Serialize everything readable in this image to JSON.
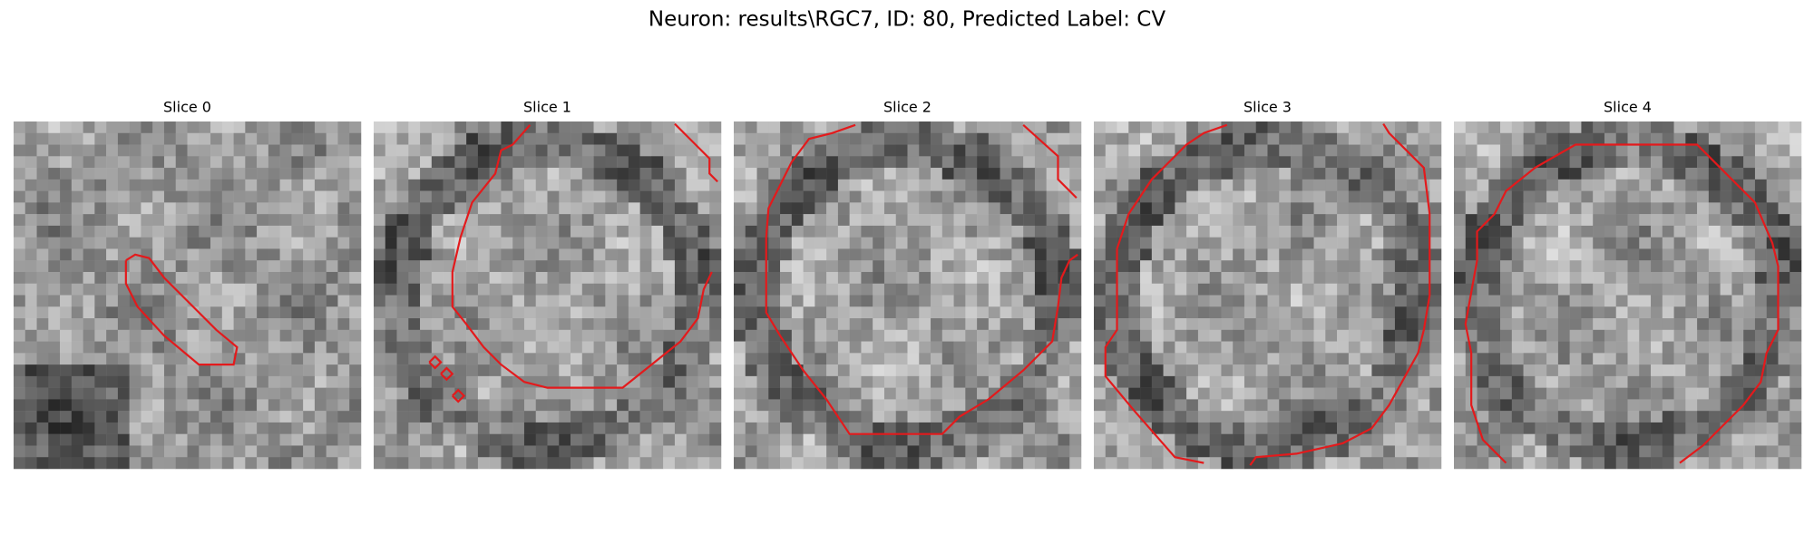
{
  "figure": {
    "title": "Neuron: results\\RGC7, ID: 80, Predicted Label: CV"
  },
  "panels": [
    {
      "title": "Slice 0"
    },
    {
      "title": "Slice 1"
    },
    {
      "title": "Slice 2"
    },
    {
      "title": "Slice 3"
    },
    {
      "title": "Slice 4"
    }
  ]
}
